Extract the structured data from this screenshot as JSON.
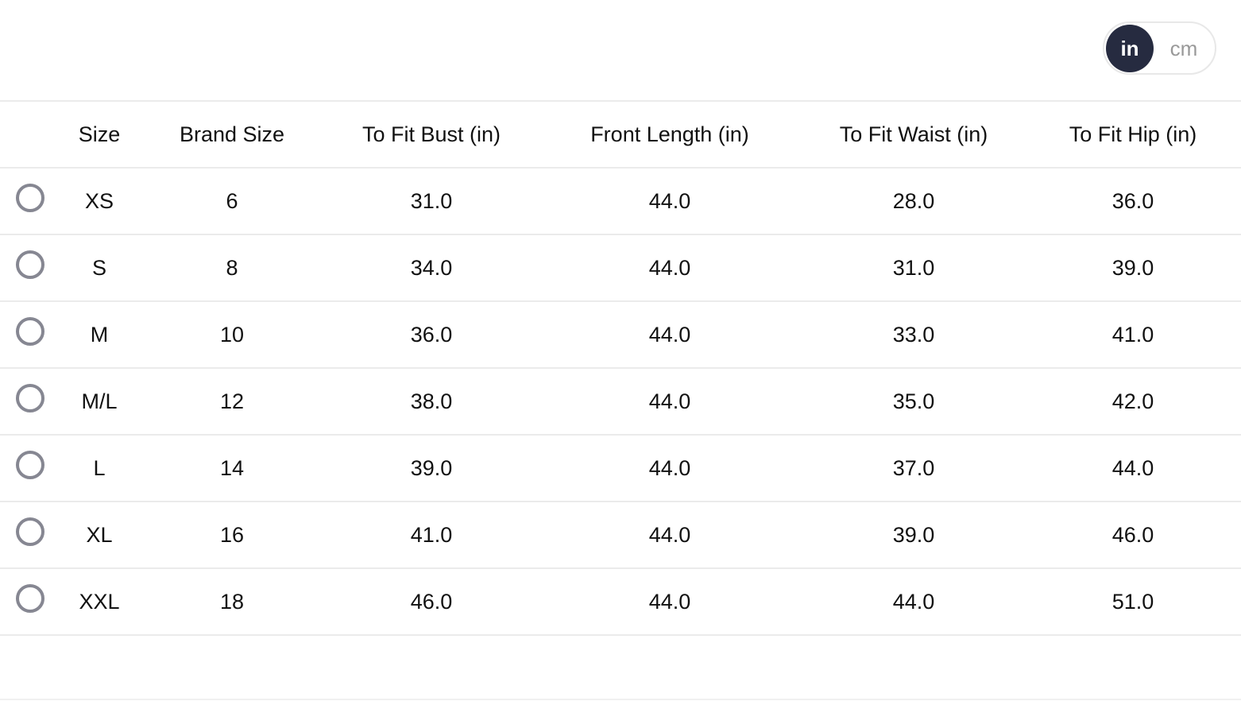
{
  "unit_toggle": {
    "options": [
      "in",
      "cm"
    ],
    "selected": "in",
    "active_color": "#262b40"
  },
  "table": {
    "headers": [
      "",
      "Size",
      "Brand Size",
      "To Fit Bust (in)",
      "Front Length (in)",
      "To Fit Waist (in)",
      "To Fit Hip (in)"
    ],
    "rows": [
      [
        "XS",
        "6",
        "31.0",
        "44.0",
        "28.0",
        "36.0"
      ],
      [
        "S",
        "8",
        "34.0",
        "44.0",
        "31.0",
        "39.0"
      ],
      [
        "M",
        "10",
        "36.0",
        "44.0",
        "33.0",
        "41.0"
      ],
      [
        "M/L",
        "12",
        "38.0",
        "44.0",
        "35.0",
        "42.0"
      ],
      [
        "L",
        "14",
        "39.0",
        "44.0",
        "37.0",
        "44.0"
      ],
      [
        "XL",
        "16",
        "41.0",
        "44.0",
        "39.0",
        "46.0"
      ],
      [
        "XXL",
        "18",
        "46.0",
        "44.0",
        "44.0",
        "51.0"
      ]
    ]
  }
}
